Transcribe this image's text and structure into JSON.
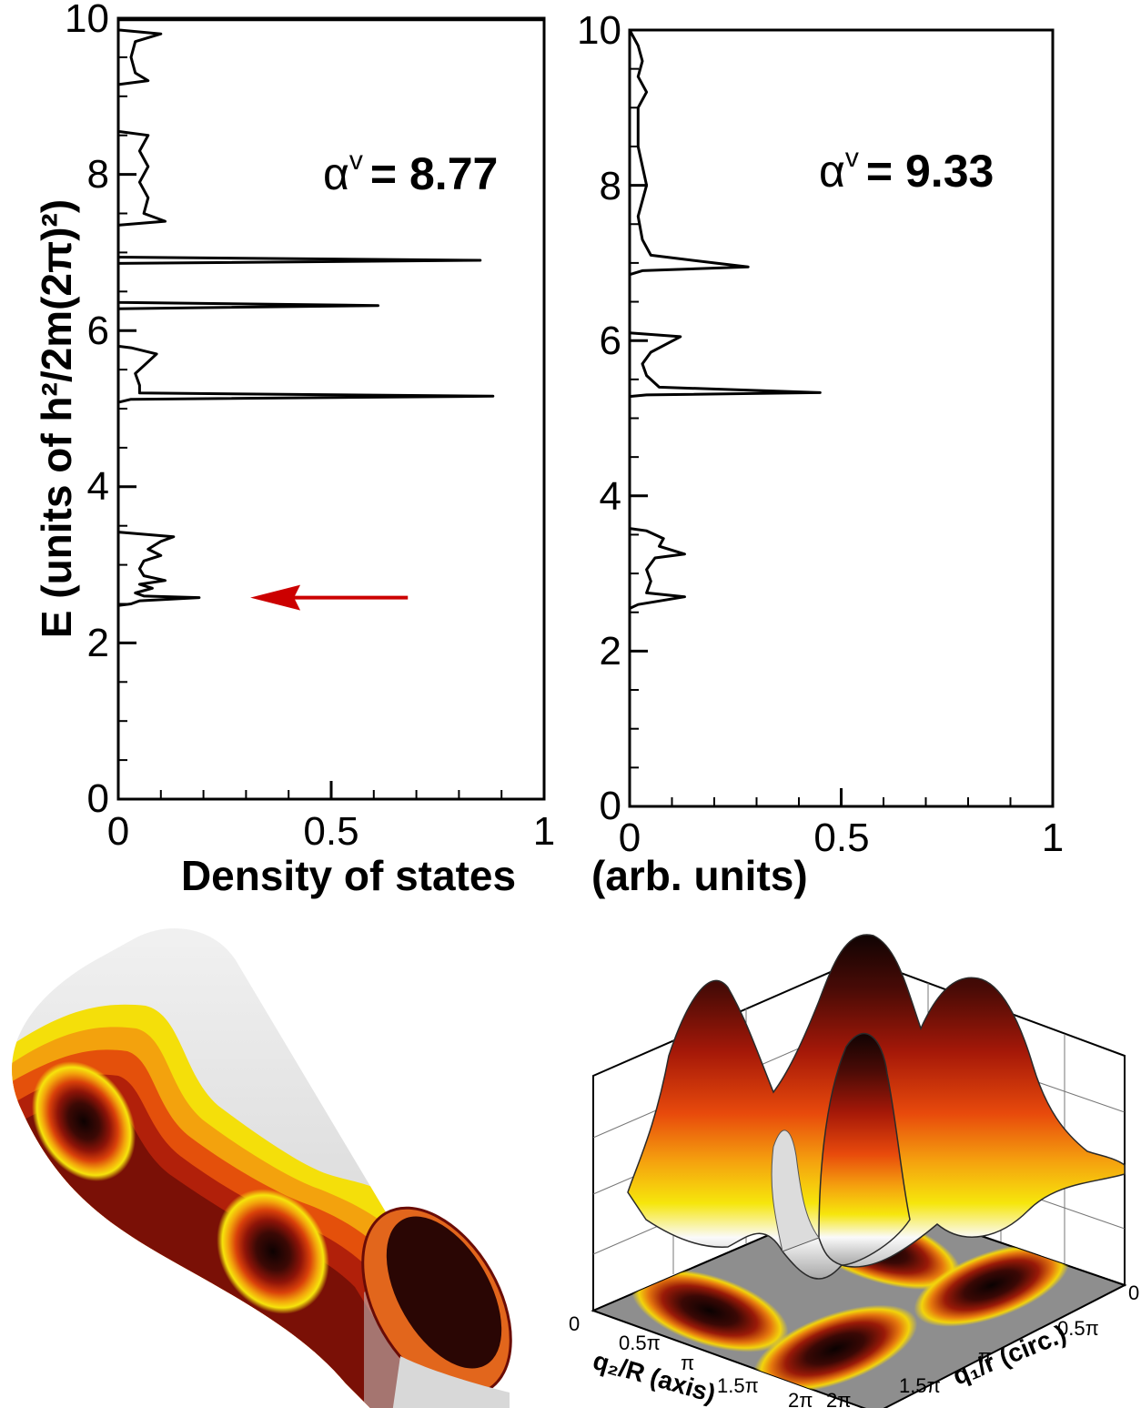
{
  "chart_data": [
    {
      "type": "line",
      "panel": "left",
      "annotation": {
        "symbol": "α",
        "superscript": "v",
        "text": "= 8.77"
      },
      "xlim": [
        0,
        1
      ],
      "ylim": [
        0,
        10
      ],
      "x_ticks": [
        "0",
        "0.5",
        "1"
      ],
      "y_ticks": [
        "0",
        "2",
        "4",
        "6",
        "8",
        "10"
      ],
      "series": [
        {
          "points": [
            [
              0.0,
              0.0
            ],
            [
              0.0,
              2.48
            ],
            [
              0.03,
              2.5
            ],
            [
              0.05,
              2.54
            ],
            [
              0.19,
              2.58
            ],
            [
              0.06,
              2.6
            ],
            [
              0.04,
              2.64
            ],
            [
              0.08,
              2.7
            ],
            [
              0.05,
              2.75
            ],
            [
              0.11,
              2.8
            ],
            [
              0.06,
              2.86
            ],
            [
              0.05,
              2.95
            ],
            [
              0.06,
              3.05
            ],
            [
              0.1,
              3.12
            ],
            [
              0.07,
              3.2
            ],
            [
              0.1,
              3.3
            ],
            [
              0.13,
              3.36
            ],
            [
              0.0,
              3.42
            ],
            [
              0.0,
              5.08
            ],
            [
              0.03,
              5.12
            ],
            [
              0.88,
              5.16
            ],
            [
              0.05,
              5.2
            ],
            [
              0.05,
              5.3
            ],
            [
              0.04,
              5.45
            ],
            [
              0.06,
              5.55
            ],
            [
              0.09,
              5.7
            ],
            [
              0.03,
              5.78
            ],
            [
              0.0,
              5.8
            ],
            [
              0.0,
              6.28
            ],
            [
              0.61,
              6.32
            ],
            [
              0.0,
              6.36
            ],
            [
              0.0,
              6.86
            ],
            [
              0.85,
              6.9
            ],
            [
              0.0,
              6.94
            ],
            [
              0.0,
              7.35
            ],
            [
              0.11,
              7.4
            ],
            [
              0.06,
              7.5
            ],
            [
              0.07,
              7.7
            ],
            [
              0.05,
              7.9
            ],
            [
              0.07,
              8.1
            ],
            [
              0.05,
              8.3
            ],
            [
              0.07,
              8.5
            ],
            [
              0.0,
              8.55
            ],
            [
              0.0,
              9.15
            ],
            [
              0.07,
              9.2
            ],
            [
              0.04,
              9.3
            ],
            [
              0.03,
              9.5
            ],
            [
              0.04,
              9.7
            ],
            [
              0.1,
              9.8
            ],
            [
              0.0,
              9.85
            ],
            [
              0.0,
              9.98
            ],
            [
              1.0,
              9.98
            ]
          ]
        }
      ],
      "arrow": {
        "from": [
          0.68,
          2.58
        ],
        "to": [
          0.31,
          2.58
        ],
        "color": "#cc0000"
      }
    },
    {
      "type": "line",
      "panel": "right",
      "annotation": {
        "symbol": "α",
        "superscript": "v",
        "text": "= 9.33"
      },
      "xlim": [
        0,
        1
      ],
      "ylim": [
        0,
        10
      ],
      "x_ticks": [
        "0",
        "0.5",
        "1"
      ],
      "y_ticks": [
        "0",
        "2",
        "4",
        "6",
        "8",
        "10"
      ],
      "series": [
        {
          "points": [
            [
              0.0,
              0.0
            ],
            [
              0.0,
              2.55
            ],
            [
              0.02,
              2.6
            ],
            [
              0.13,
              2.7
            ],
            [
              0.04,
              2.75
            ],
            [
              0.05,
              2.9
            ],
            [
              0.04,
              3.05
            ],
            [
              0.06,
              3.2
            ],
            [
              0.13,
              3.25
            ],
            [
              0.07,
              3.35
            ],
            [
              0.08,
              3.45
            ],
            [
              0.04,
              3.55
            ],
            [
              0.0,
              3.58
            ],
            [
              0.0,
              5.28
            ],
            [
              0.04,
              5.3
            ],
            [
              0.45,
              5.33
            ],
            [
              0.07,
              5.4
            ],
            [
              0.04,
              5.55
            ],
            [
              0.03,
              5.7
            ],
            [
              0.05,
              5.85
            ],
            [
              0.12,
              6.05
            ],
            [
              0.0,
              6.1
            ],
            [
              0.0,
              6.85
            ],
            [
              0.03,
              6.9
            ],
            [
              0.28,
              6.95
            ],
            [
              0.2,
              7.0
            ],
            [
              0.05,
              7.1
            ],
            [
              0.03,
              7.3
            ],
            [
              0.02,
              7.6
            ],
            [
              0.04,
              8.0
            ],
            [
              0.02,
              8.5
            ],
            [
              0.02,
              9.0
            ],
            [
              0.04,
              9.2
            ],
            [
              0.02,
              9.4
            ],
            [
              0.03,
              9.6
            ],
            [
              0.02,
              9.8
            ],
            [
              0.0,
              10.0
            ]
          ]
        }
      ]
    }
  ],
  "labels": {
    "y_axis": "E (units of h²/2m(2π)²)",
    "x_axis_left": "Density of states",
    "x_axis_right": "(arb. units)",
    "surface_q2_axis": "q₂/R (axis)",
    "surface_q1_axis": "q₁/r (circ.)",
    "q2_ticks": [
      "0",
      "0.5π",
      "π",
      "1.5π",
      "2π"
    ],
    "q1_ticks": [
      "0",
      "0.5π",
      "π",
      "1.5π",
      "2π"
    ]
  },
  "colors": {
    "axis": "#000000",
    "line": "#000000",
    "arrow": "#cc0000",
    "heat_dark": "#150404",
    "heat_mid": "#a01808",
    "heat_orange": "#e86a10",
    "heat_yellow": "#f4d400",
    "heat_light": "#eeeeee",
    "floor": "#8e8e8e"
  }
}
